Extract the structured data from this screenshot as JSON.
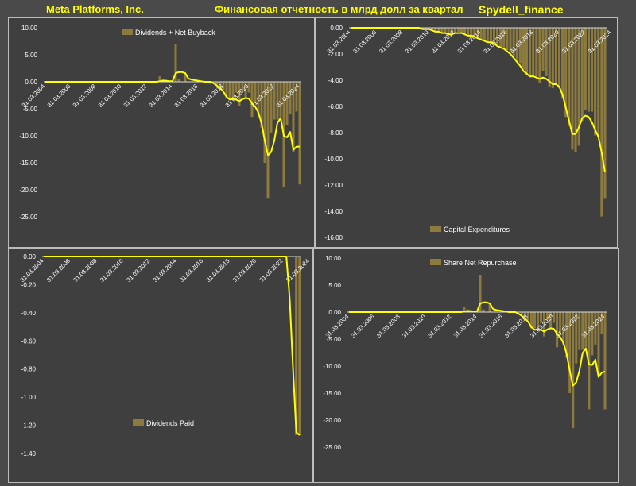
{
  "header": {
    "company": "Meta Platforms, Inc.",
    "subtitle": "Финансовая отчетность в млрд долл за квартал",
    "source": "Spydell_finance"
  },
  "colors": {
    "bar": "#8c7a3e",
    "line": "#ffff00",
    "background": "#3f3f3f",
    "header_text": "#ffff00",
    "axis_text": "#ffffff"
  },
  "chart_data": [
    {
      "type": "bar",
      "legend": "Dividends + Net Buyback",
      "ylim": [
        -25,
        10
      ],
      "yticks": [
        "10.00",
        "5.00",
        "0.00",
        "-5.00",
        "-10.00",
        "-15.00",
        "-20.00",
        "-25.00"
      ],
      "xticks": [
        "31.03.2004",
        "31.03.2006",
        "31.03.2008",
        "31.03.2010",
        "31.03.2012",
        "31.03.2014",
        "31.03.2016",
        "31.03.2018",
        "31.03.2020",
        "31.03.2022",
        "31.03.2024"
      ],
      "x_start": "2004-03-31",
      "bars": [
        0,
        0,
        0,
        0,
        0,
        0,
        0,
        0,
        0,
        0,
        0,
        0,
        0,
        0,
        0,
        0,
        0,
        0,
        0,
        0,
        0,
        0,
        0,
        0,
        0,
        0,
        0,
        0,
        0,
        0,
        0,
        0,
        0,
        0,
        0,
        0,
        1,
        0.5,
        0,
        0,
        0,
        6.9,
        0.5,
        0,
        1.6,
        0,
        0,
        0,
        0,
        0,
        0,
        0,
        0,
        0,
        -0.5,
        -1,
        -1.5,
        -3,
        -3,
        -3,
        -2,
        -4.5,
        -1.5,
        -3,
        -2,
        -6.5,
        -4,
        -6,
        -8.5,
        -15,
        -21.5,
        -9.5,
        -7,
        -7,
        -6.5,
        -19.5,
        -8,
        -6,
        -13,
        -5.5,
        -19
      ],
      "trend": [
        0,
        0,
        0,
        0,
        0,
        0,
        0,
        0,
        0,
        0,
        0,
        0,
        0,
        0,
        0,
        0,
        0,
        0,
        0,
        0,
        0,
        0,
        0,
        0,
        0,
        0,
        0,
        0,
        0,
        0,
        0,
        0,
        0,
        0,
        0,
        0,
        0.1,
        0.2,
        0.2,
        0.1,
        0.1,
        1.6,
        1.8,
        1.8,
        1.6,
        0.6,
        0.4,
        0.3,
        0.2,
        0.1,
        0,
        0,
        0,
        -0.3,
        -0.7,
        -1.2,
        -1.8,
        -2.8,
        -3.3,
        -3.2,
        -3.3,
        -3.6,
        -3.2,
        -3,
        -3.1,
        -4,
        -4.6,
        -5.7,
        -7.7,
        -10.9,
        -13.6,
        -13,
        -10.9,
        -7.6,
        -6.7,
        -10,
        -10.3,
        -9.3,
        -12.6,
        -12,
        -12
      ]
    },
    {
      "type": "bar",
      "legend": "Capital Expenditures",
      "ylim": [
        -16,
        0
      ],
      "yticks": [
        "0.00",
        "-2.00",
        "-4.00",
        "-6.00",
        "-8.00",
        "-10.00",
        "-12.00",
        "-14.00",
        "-16.00"
      ],
      "xticks": [
        "31.03.2004",
        "31.03.2006",
        "31.03.2008",
        "31.03.2010",
        "31.03.2012",
        "31.03.2014",
        "31.03.2016",
        "31.03.2018",
        "31.03.2020",
        "31.03.2022",
        "31.03.2024"
      ],
      "x_start": "2004-03-31",
      "bars": [
        0,
        0,
        0,
        0,
        0,
        0,
        0,
        0,
        0,
        0,
        0,
        0,
        0,
        0,
        0,
        0,
        0,
        0,
        0,
        0,
        0,
        0,
        -0.1,
        -0.1,
        -0.1,
        -0.2,
        -0.3,
        -0.3,
        -0.4,
        -0.4,
        -0.5,
        -0.5,
        -0.4,
        -0.3,
        -0.4,
        -0.5,
        -0.6,
        -0.6,
        -0.7,
        -0.8,
        -0.9,
        -1,
        -1.1,
        -1.1,
        -1.2,
        -1.3,
        -1.5,
        -1.5,
        -1.7,
        -1.9,
        -2.2,
        -2.5,
        -2.7,
        -3.2,
        -3.5,
        -3.8,
        -3.7,
        -3.7,
        -4.2,
        -3.3,
        -3.7,
        -4.5,
        -4.6,
        -4.3,
        -4.6,
        -5.4,
        -6.8,
        -7.5,
        -9.3,
        -9.5,
        -9,
        -7.1,
        -6.3,
        -6.4,
        -6.4,
        -8.2,
        -8.3,
        -14.4,
        -13
      ],
      "trend": [
        0,
        0,
        0,
        0,
        0,
        0,
        0,
        0,
        0,
        0,
        0,
        0,
        0,
        0,
        0,
        0,
        0,
        0,
        0,
        0,
        0,
        0,
        -0.1,
        -0.1,
        -0.1,
        -0.2,
        -0.3,
        -0.3,
        -0.4,
        -0.4,
        -0.5,
        -0.5,
        -0.4,
        -0.4,
        -0.4,
        -0.5,
        -0.6,
        -0.6,
        -0.7,
        -0.8,
        -0.9,
        -1,
        -1.1,
        -1.1,
        -1.2,
        -1.4,
        -1.5,
        -1.6,
        -1.8,
        -2,
        -2.3,
        -2.6,
        -2.9,
        -3.3,
        -3.5,
        -3.7,
        -3.7,
        -3.8,
        -3.9,
        -3.8,
        -3.9,
        -4.1,
        -4.3,
        -4.3,
        -4.5,
        -5.1,
        -6.1,
        -7.1,
        -8.1,
        -8.1,
        -7.6,
        -6.9,
        -6.7,
        -6.8,
        -7.2,
        -7.8,
        -8.3,
        -9.5,
        -11
      ]
    },
    {
      "type": "bar",
      "legend": "Dividends Paid",
      "ylim": [
        -1.4,
        0
      ],
      "yticks": [
        "0.00",
        "-0.20",
        "-0.40",
        "-0.60",
        "-0.80",
        "-1.00",
        "-1.20",
        "-1.40"
      ],
      "xticks": [
        "31.03.2004",
        "31.03.2006",
        "31.03.2008",
        "31.03.2010",
        "31.03.2012",
        "31.03.2014",
        "31.03.2016",
        "31.03.2018",
        "31.03.2020",
        "31.03.2022",
        "31.03.2024"
      ],
      "x_start": "2004-03-31",
      "bars": [
        0,
        0,
        0,
        0,
        0,
        0,
        0,
        0,
        0,
        0,
        0,
        0,
        0,
        0,
        0,
        0,
        0,
        0,
        0,
        0,
        0,
        0,
        0,
        0,
        0,
        0,
        0,
        0,
        0,
        0,
        0,
        0,
        0,
        0,
        0,
        0,
        0,
        0,
        0,
        0,
        0,
        0,
        0,
        0,
        0,
        0,
        0,
        0,
        0,
        0,
        0,
        0,
        0,
        0,
        0,
        0,
        0,
        0,
        0,
        0,
        0,
        0,
        0,
        0,
        0,
        0,
        0,
        0,
        0,
        0,
        0,
        0,
        0,
        0,
        0,
        0,
        -1.27,
        -1.27
      ],
      "trend": [
        0,
        0,
        0,
        0,
        0,
        0,
        0,
        0,
        0,
        0,
        0,
        0,
        0,
        0,
        0,
        0,
        0,
        0,
        0,
        0,
        0,
        0,
        0,
        0,
        0,
        0,
        0,
        0,
        0,
        0,
        0,
        0,
        0,
        0,
        0,
        0,
        0,
        0,
        0,
        0,
        0,
        0,
        0,
        0,
        0,
        0,
        0,
        0,
        0,
        0,
        0,
        0,
        0,
        0,
        0,
        0,
        0,
        0,
        0,
        0,
        0,
        0,
        0,
        0,
        0,
        0,
        0,
        0,
        0,
        0,
        0,
        0,
        0,
        0,
        -0.3,
        -0.8,
        -1.25,
        -1.27
      ]
    },
    {
      "type": "bar",
      "legend": "Share Net Repurchase",
      "ylim": [
        -25,
        10
      ],
      "yticks": [
        "10.00",
        "5.00",
        "0.00",
        "-5.00",
        "-10.00",
        "-15.00",
        "-20.00",
        "-25.00"
      ],
      "xticks": [
        "31.03.2004",
        "31.03.2006",
        "31.03.2008",
        "31.03.2010",
        "31.03.2012",
        "31.03.2014",
        "31.03.2016",
        "31.03.2018",
        "31.03.2020",
        "31.03.2022",
        "31.03.2024"
      ],
      "x_start": "2004-03-31",
      "bars": [
        0,
        0,
        0,
        0,
        0,
        0,
        0,
        0,
        0,
        0,
        0,
        0,
        0,
        0,
        0,
        0,
        0,
        0,
        0,
        0,
        0,
        0,
        0,
        0,
        0,
        0,
        0,
        0,
        0,
        0,
        0,
        0,
        0,
        0,
        0,
        0,
        1,
        0.5,
        0,
        0,
        0,
        6.9,
        0.5,
        0,
        1.6,
        0,
        0,
        0,
        0,
        0,
        0,
        0,
        0,
        0,
        -0.5,
        -1,
        -1.5,
        -3,
        -3,
        -3,
        -2,
        -4.5,
        -1.5,
        -3,
        -2,
        -6.5,
        -4,
        -6,
        -8.5,
        -15,
        -21.5,
        -9.5,
        -7,
        -7,
        -6.5,
        -18,
        -8,
        -6,
        -12,
        -4,
        -18
      ],
      "trend": [
        0,
        0,
        0,
        0,
        0,
        0,
        0,
        0,
        0,
        0,
        0,
        0,
        0,
        0,
        0,
        0,
        0,
        0,
        0,
        0,
        0,
        0,
        0,
        0,
        0,
        0,
        0,
        0,
        0,
        0,
        0,
        0,
        0,
        0,
        0,
        0,
        0.1,
        0.2,
        0.2,
        0.1,
        0.1,
        1.6,
        1.8,
        1.8,
        1.6,
        0.6,
        0.4,
        0.3,
        0.2,
        0.1,
        0,
        0,
        0,
        -0.3,
        -0.7,
        -1.2,
        -1.8,
        -2.8,
        -3.3,
        -3.2,
        -3.3,
        -3.6,
        -3.2,
        -3,
        -3.1,
        -4,
        -4.6,
        -5.7,
        -7.7,
        -10.9,
        -13.6,
        -13,
        -10.9,
        -7.6,
        -6.7,
        -9.7,
        -9.8,
        -8.8,
        -12,
        -11.2,
        -11
      ]
    }
  ]
}
